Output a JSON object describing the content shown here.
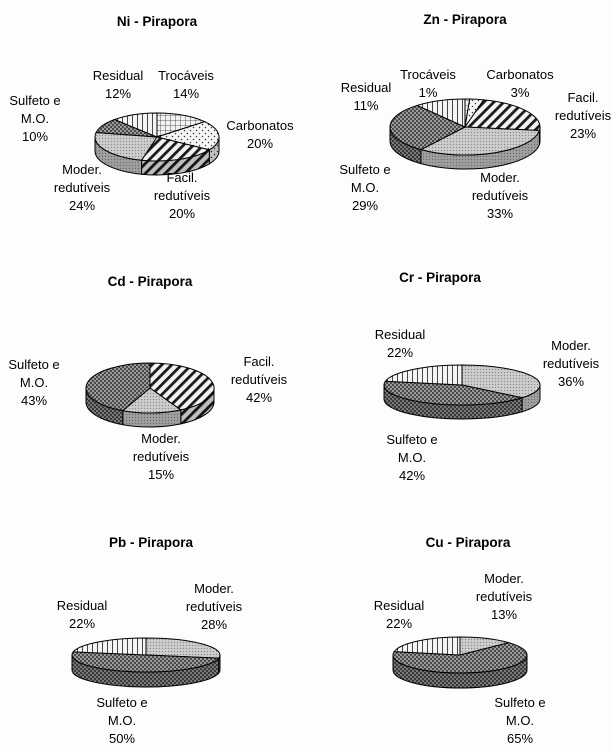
{
  "chart_data": [
    {
      "type": "pie",
      "title": "Ni - Pirapora",
      "series": [
        {
          "slices": [
            {
              "label": [
                "Trocáveis"
              ],
              "pct": "14%",
              "value": 14,
              "pattern": "grid"
            },
            {
              "label": [
                "Carbonatos"
              ],
              "pct": "20%",
              "value": 20,
              "pattern": "dots"
            },
            {
              "label": [
                "Facil.",
                "redutíveis"
              ],
              "pct": "20%",
              "value": 20,
              "pattern": "hatch"
            },
            {
              "label": [
                "Moder.",
                "redutíveis"
              ],
              "pct": "24%",
              "value": 24,
              "pattern": "fine"
            },
            {
              "label": [
                "Sulfeto e",
                "M.O."
              ],
              "pct": "10%",
              "value": 10,
              "pattern": "check"
            },
            {
              "label": [
                "Residual"
              ],
              "pct": "12%",
              "value": 12,
              "pattern": "vbar"
            }
          ]
        }
      ]
    },
    {
      "type": "pie",
      "title": "Zn - Pirapora",
      "series": [
        {
          "slices": [
            {
              "label": [
                "Trocáveis"
              ],
              "pct": "1%",
              "value": 1,
              "pattern": "grid"
            },
            {
              "label": [
                "Carbonatos"
              ],
              "pct": "3%",
              "value": 3,
              "pattern": "dots"
            },
            {
              "label": [
                "Facil.",
                "redutíveis"
              ],
              "pct": "23%",
              "value": 23,
              "pattern": "hatch"
            },
            {
              "label": [
                "Moder.",
                "redutíveis"
              ],
              "pct": "33%",
              "value": 33,
              "pattern": "fine"
            },
            {
              "label": [
                "Sulfeto e",
                "M.O."
              ],
              "pct": "29%",
              "value": 29,
              "pattern": "check"
            },
            {
              "label": [
                "Residual"
              ],
              "pct": "11%",
              "value": 11,
              "pattern": "vbar"
            }
          ]
        }
      ]
    },
    {
      "type": "pie",
      "title": "Cd - Pirapora",
      "series": [
        {
          "slices": [
            {
              "label": [
                "Facil.",
                "redutíveis"
              ],
              "pct": "42%",
              "value": 42,
              "pattern": "hatch"
            },
            {
              "label": [
                "Moder.",
                "redutíveis"
              ],
              "pct": "15%",
              "value": 15,
              "pattern": "fine"
            },
            {
              "label": [
                "Sulfeto e",
                "M.O."
              ],
              "pct": "43%",
              "value": 43,
              "pattern": "check"
            }
          ]
        }
      ]
    },
    {
      "type": "pie",
      "title": "Cr - Pirapora",
      "series": [
        {
          "slices": [
            {
              "label": [
                "Moder.",
                "redutíveis"
              ],
              "pct": "36%",
              "value": 36,
              "pattern": "fine"
            },
            {
              "label": [
                "Sulfeto e",
                "M.O."
              ],
              "pct": "42%",
              "value": 42,
              "pattern": "check"
            },
            {
              "label": [
                "Residual"
              ],
              "pct": "22%",
              "value": 22,
              "pattern": "vbar"
            }
          ]
        }
      ]
    },
    {
      "type": "pie",
      "title": "Pb - Pirapora",
      "series": [
        {
          "slices": [
            {
              "label": [
                "Moder.",
                "redutíveis"
              ],
              "pct": "28%",
              "value": 28,
              "pattern": "fine"
            },
            {
              "label": [
                "Sulfeto e",
                "M.O."
              ],
              "pct": "50%",
              "value": 50,
              "pattern": "check"
            },
            {
              "label": [
                "Residual"
              ],
              "pct": "22%",
              "value": 22,
              "pattern": "vbar"
            }
          ]
        }
      ]
    },
    {
      "type": "pie",
      "title": "Cu - Pirapora",
      "series": [
        {
          "slices": [
            {
              "label": [
                "Moder.",
                "redutíveis"
              ],
              "pct": "13%",
              "value": 13,
              "pattern": "fine"
            },
            {
              "label": [
                "Sulfeto e",
                "M.O."
              ],
              "pct": "65%",
              "value": 65,
              "pattern": "check"
            },
            {
              "label": [
                "Residual"
              ],
              "pct": "22%",
              "value": 22,
              "pattern": "vbar"
            }
          ]
        }
      ]
    }
  ]
}
